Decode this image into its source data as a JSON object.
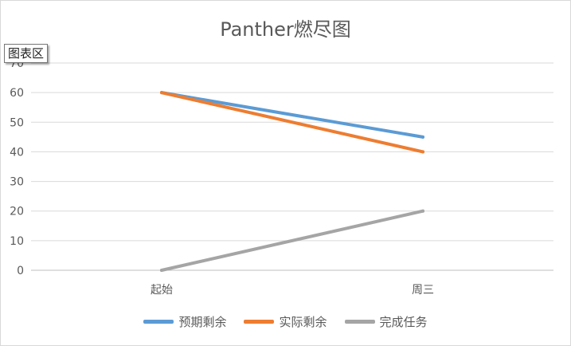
{
  "tooltip": "图表区",
  "chart_data": {
    "type": "line",
    "title": "Panther燃尽图",
    "xlabel": "",
    "ylabel": "",
    "categories": [
      "起始",
      "周三"
    ],
    "ylim": [
      0,
      70
    ],
    "yticks": [
      0,
      10,
      20,
      30,
      40,
      50,
      60,
      70
    ],
    "grid": true,
    "legend_position": "bottom",
    "series": [
      {
        "name": "预期剩余",
        "values": [
          60,
          45
        ],
        "color": "#5b9bd5"
      },
      {
        "name": "实际剩余",
        "values": [
          60,
          40
        ],
        "color": "#ed7d31"
      },
      {
        "name": "完成任务",
        "values": [
          0,
          20
        ],
        "color": "#a5a5a5"
      }
    ]
  }
}
